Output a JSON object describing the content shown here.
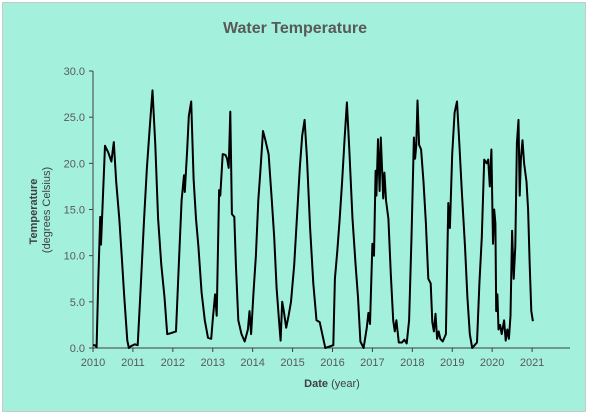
{
  "chart_data": {
    "type": "line",
    "title": "Water Temperature",
    "ylabel": {
      "main": "Temperature",
      "sub": "(degrees Celsius)"
    },
    "xlabel": {
      "main": "Date",
      "sub": "(year)"
    },
    "xlim": [
      2010,
      2021.95
    ],
    "ylim": [
      0,
      30
    ],
    "x_ticks": [
      "2010",
      "2011",
      "2012",
      "2013",
      "2014",
      "2015",
      "2016",
      "2017",
      "2018",
      "2019",
      "2020",
      "2021"
    ],
    "y_ticks": [
      "0.0",
      "5.0",
      "10.0",
      "15.0",
      "20.0",
      "25.0",
      "30.0"
    ],
    "grid": false,
    "line_color": "#000000",
    "series": [
      {
        "values": [
          [
            2010.0,
            0.3
          ],
          [
            2010.05,
            0.3
          ],
          [
            2010.09,
            0.1
          ],
          [
            2010.13,
            7.0
          ],
          [
            2010.18,
            14.2
          ],
          [
            2010.2,
            11.2
          ],
          [
            2010.24,
            15.5
          ],
          [
            2010.3,
            21.9
          ],
          [
            2010.38,
            21.2
          ],
          [
            2010.46,
            20.2
          ],
          [
            2010.52,
            22.3
          ],
          [
            2010.58,
            18.0
          ],
          [
            2010.66,
            14.0
          ],
          [
            2010.72,
            10.0
          ],
          [
            2010.78,
            5.8
          ],
          [
            2010.86,
            0.8
          ],
          [
            2010.9,
            0.0
          ],
          [
            2010.95,
            0.2
          ],
          [
            2011.05,
            0.4
          ],
          [
            2011.12,
            0.3
          ],
          [
            2011.2,
            7.0
          ],
          [
            2011.28,
            14.0
          ],
          [
            2011.35,
            19.5
          ],
          [
            2011.42,
            23.8
          ],
          [
            2011.49,
            27.9
          ],
          [
            2011.56,
            22.0
          ],
          [
            2011.63,
            14.0
          ],
          [
            2011.71,
            9.0
          ],
          [
            2011.79,
            5.5
          ],
          [
            2011.86,
            1.5
          ],
          [
            2011.95,
            1.6
          ],
          [
            2012.08,
            1.8
          ],
          [
            2012.15,
            9.0
          ],
          [
            2012.22,
            16.0
          ],
          [
            2012.28,
            18.7
          ],
          [
            2012.3,
            16.9
          ],
          [
            2012.36,
            21.5
          ],
          [
            2012.4,
            25.1
          ],
          [
            2012.46,
            26.7
          ],
          [
            2012.52,
            18.3
          ],
          [
            2012.58,
            14.0
          ],
          [
            2012.64,
            11.0
          ],
          [
            2012.72,
            6.0
          ],
          [
            2012.8,
            3.0
          ],
          [
            2012.88,
            1.1
          ],
          [
            2012.96,
            1.0
          ],
          [
            2013.0,
            3.0
          ],
          [
            2013.06,
            5.8
          ],
          [
            2013.1,
            3.5
          ],
          [
            2013.16,
            17.1
          ],
          [
            2013.19,
            16.5
          ],
          [
            2013.25,
            21.0
          ],
          [
            2013.32,
            20.9
          ],
          [
            2013.36,
            20.5
          ],
          [
            2013.4,
            19.5
          ],
          [
            2013.44,
            25.6
          ],
          [
            2013.48,
            14.5
          ],
          [
            2013.54,
            14.2
          ],
          [
            2013.58,
            9.0
          ],
          [
            2013.64,
            3.0
          ],
          [
            2013.72,
            1.5
          ],
          [
            2013.8,
            0.7
          ],
          [
            2013.88,
            2.0
          ],
          [
            2013.92,
            4.0
          ],
          [
            2013.96,
            1.5
          ],
          [
            2014.02,
            6.0
          ],
          [
            2014.08,
            10.0
          ],
          [
            2014.14,
            16.0
          ],
          [
            2014.2,
            19.5
          ],
          [
            2014.26,
            23.5
          ],
          [
            2014.32,
            22.5
          ],
          [
            2014.4,
            21.0
          ],
          [
            2014.48,
            16.0
          ],
          [
            2014.54,
            12.0
          ],
          [
            2014.6,
            6.5
          ],
          [
            2014.66,
            3.0
          ],
          [
            2014.7,
            0.8
          ],
          [
            2014.74,
            5.0
          ],
          [
            2014.78,
            4.0
          ],
          [
            2014.84,
            2.2
          ],
          [
            2014.9,
            3.5
          ],
          [
            2014.96,
            5.0
          ],
          [
            2015.04,
            9.0
          ],
          [
            2015.1,
            13.5
          ],
          [
            2015.18,
            19.5
          ],
          [
            2015.24,
            23.0
          ],
          [
            2015.3,
            24.7
          ],
          [
            2015.36,
            20.5
          ],
          [
            2015.44,
            13.0
          ],
          [
            2015.52,
            7.0
          ],
          [
            2015.6,
            3.0
          ],
          [
            2015.68,
            2.8
          ],
          [
            2015.76,
            1.2
          ],
          [
            2015.82,
            0.0
          ],
          [
            2016.02,
            0.3
          ],
          [
            2016.06,
            7.5
          ],
          [
            2016.12,
            10.5
          ],
          [
            2016.18,
            14.0
          ],
          [
            2016.24,
            18.0
          ],
          [
            2016.3,
            22.5
          ],
          [
            2016.36,
            26.6
          ],
          [
            2016.42,
            21.5
          ],
          [
            2016.5,
            14.0
          ],
          [
            2016.58,
            9.0
          ],
          [
            2016.64,
            5.5
          ],
          [
            2016.7,
            0.7
          ],
          [
            2016.78,
            0.0
          ],
          [
            2016.86,
            2.2
          ],
          [
            2016.9,
            3.8
          ],
          [
            2016.94,
            2.6
          ],
          [
            2017.0,
            11.3
          ],
          [
            2017.04,
            10.0
          ],
          [
            2017.08,
            19.2
          ],
          [
            2017.1,
            16.5
          ],
          [
            2017.14,
            22.6
          ],
          [
            2017.18,
            17.0
          ],
          [
            2017.21,
            22.8
          ],
          [
            2017.25,
            18.5
          ],
          [
            2017.27,
            16.2
          ],
          [
            2017.3,
            19.0
          ],
          [
            2017.34,
            16.0
          ],
          [
            2017.4,
            14.0
          ],
          [
            2017.46,
            8.0
          ],
          [
            2017.52,
            3.0
          ],
          [
            2017.56,
            1.8
          ],
          [
            2017.6,
            3.0
          ],
          [
            2017.66,
            0.6
          ],
          [
            2017.74,
            0.6
          ],
          [
            2017.8,
            0.9
          ],
          [
            2017.86,
            0.5
          ],
          [
            2017.92,
            3.0
          ],
          [
            2017.98,
            12.0
          ],
          [
            2018.04,
            22.8
          ],
          [
            2018.07,
            20.5
          ],
          [
            2018.1,
            22.0
          ],
          [
            2018.13,
            26.8
          ],
          [
            2018.17,
            22.0
          ],
          [
            2018.22,
            21.5
          ],
          [
            2018.28,
            18.0
          ],
          [
            2018.34,
            13.5
          ],
          [
            2018.4,
            7.5
          ],
          [
            2018.46,
            7.0
          ],
          [
            2018.5,
            2.8
          ],
          [
            2018.54,
            1.8
          ],
          [
            2018.58,
            3.7
          ],
          [
            2018.62,
            1.0
          ],
          [
            2018.66,
            1.8
          ],
          [
            2018.7,
            1.0
          ],
          [
            2018.76,
            0.7
          ],
          [
            2018.84,
            1.5
          ],
          [
            2018.9,
            15.7
          ],
          [
            2018.94,
            13.0
          ],
          [
            2019.0,
            21.0
          ],
          [
            2019.06,
            25.5
          ],
          [
            2019.12,
            26.7
          ],
          [
            2019.18,
            22.0
          ],
          [
            2019.24,
            17.0
          ],
          [
            2019.32,
            11.0
          ],
          [
            2019.38,
            5.5
          ],
          [
            2019.44,
            1.5
          ],
          [
            2019.5,
            0.0
          ],
          [
            2019.56,
            0.3
          ],
          [
            2019.62,
            0.6
          ],
          [
            2019.68,
            7.0
          ],
          [
            2019.74,
            12.0
          ],
          [
            2019.8,
            20.4
          ],
          [
            2019.86,
            20.0
          ],
          [
            2019.9,
            20.4
          ],
          [
            2019.94,
            17.5
          ],
          [
            2019.98,
            21.5
          ],
          [
            2020.02,
            11.3
          ],
          [
            2020.05,
            15.0
          ],
          [
            2020.08,
            13.5
          ],
          [
            2020.1,
            4.0
          ],
          [
            2020.13,
            5.8
          ],
          [
            2020.16,
            2.0
          ],
          [
            2020.2,
            2.5
          ],
          [
            2020.24,
            1.5
          ],
          [
            2020.3,
            3.0
          ],
          [
            2020.34,
            0.8
          ],
          [
            2020.38,
            2.0
          ],
          [
            2020.42,
            1.0
          ],
          [
            2020.46,
            3.5
          ],
          [
            2020.5,
            12.7
          ],
          [
            2020.54,
            7.5
          ],
          [
            2020.58,
            11.0
          ],
          [
            2020.62,
            22.2
          ],
          [
            2020.66,
            24.7
          ],
          [
            2020.69,
            16.5
          ],
          [
            2020.72,
            20.5
          ],
          [
            2020.76,
            22.5
          ],
          [
            2020.8,
            20.0
          ],
          [
            2020.86,
            18.0
          ],
          [
            2020.9,
            15.0
          ],
          [
            2020.94,
            9.0
          ],
          [
            2020.98,
            4.0
          ],
          [
            2021.02,
            2.9
          ]
        ]
      }
    ]
  }
}
